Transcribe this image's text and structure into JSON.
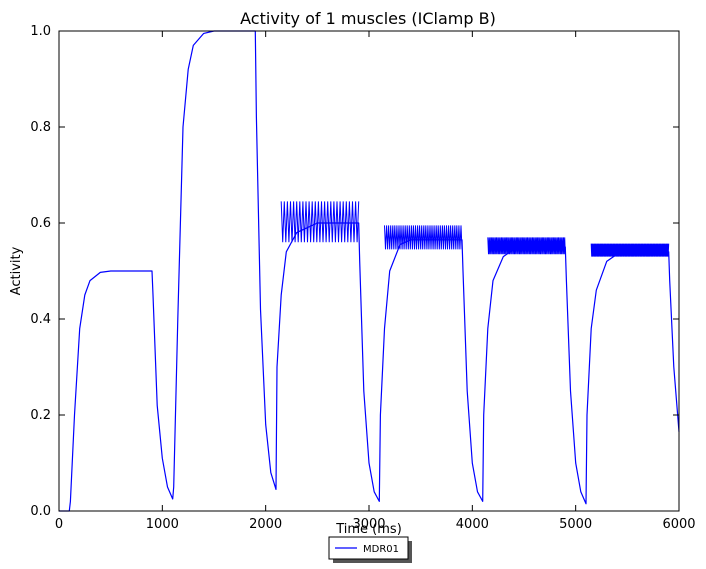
{
  "chart_data": {
    "type": "line",
    "title": "Activity of 1 muscles (IClamp B)",
    "xlabel": "Time (ms)",
    "ylabel": "Activity",
    "xlim": [
      0,
      6000
    ],
    "ylim": [
      0.0,
      1.0
    ],
    "xticks": [
      "0",
      "1000",
      "2000",
      "3000",
      "4000",
      "5000",
      "6000"
    ],
    "yticks": [
      "0.0",
      "0.2",
      "0.4",
      "0.6",
      "0.8",
      "1.0"
    ],
    "grid": false,
    "legend_position": "bottom-center (outside, below axis)",
    "series": [
      {
        "name": "MDR01",
        "color": "#0000ff",
        "x": [
          0,
          100,
          110,
          150,
          200,
          250,
          300,
          400,
          500,
          600,
          700,
          800,
          900,
          910,
          950,
          1000,
          1050,
          1100,
          1110,
          1150,
          1200,
          1250,
          1300,
          1400,
          1500,
          1600,
          1700,
          1800,
          1900,
          1910,
          1950,
          2000,
          2050,
          2100,
          2110,
          2150,
          2200,
          2300,
          2400,
          2500,
          2600,
          2700,
          2800,
          2900,
          2910,
          2950,
          3000,
          3050,
          3100,
          3110,
          3150,
          3200,
          3300,
          3400,
          3500,
          3600,
          3700,
          3800,
          3900,
          3910,
          3950,
          4000,
          4050,
          4100,
          4110,
          4150,
          4200,
          4300,
          4400,
          4500,
          4600,
          4700,
          4800,
          4900,
          4910,
          4950,
          5000,
          5050,
          5100,
          5110,
          5150,
          5200,
          5300,
          5400,
          5500,
          5600,
          5700,
          5800,
          5900,
          5910,
          5950,
          6000
        ],
        "y": [
          0.0,
          0.0,
          0.02,
          0.2,
          0.38,
          0.45,
          0.48,
          0.497,
          0.5,
          0.5,
          0.5,
          0.5,
          0.5,
          0.45,
          0.22,
          0.11,
          0.05,
          0.025,
          0.05,
          0.4,
          0.8,
          0.92,
          0.97,
          0.995,
          1.0,
          1.0,
          1.0,
          1.0,
          1.0,
          0.82,
          0.42,
          0.18,
          0.08,
          0.045,
          0.3,
          0.45,
          0.54,
          0.58,
          0.59,
          0.6,
          0.6,
          0.6,
          0.6,
          0.6,
          0.52,
          0.25,
          0.1,
          0.04,
          0.02,
          0.2,
          0.38,
          0.5,
          0.555,
          0.565,
          0.565,
          0.565,
          0.565,
          0.565,
          0.565,
          0.5,
          0.25,
          0.1,
          0.04,
          0.02,
          0.2,
          0.38,
          0.48,
          0.53,
          0.545,
          0.55,
          0.55,
          0.55,
          0.55,
          0.55,
          0.48,
          0.25,
          0.1,
          0.04,
          0.015,
          0.2,
          0.38,
          0.46,
          0.52,
          0.535,
          0.54,
          0.54,
          0.54,
          0.54,
          0.54,
          0.48,
          0.3,
          0.165
        ]
      }
    ],
    "oscillation_bands": [
      {
        "x_start": 2150,
        "x_end": 2900,
        "low": 0.56,
        "high": 0.645,
        "period": 30
      },
      {
        "x_start": 3150,
        "x_end": 3900,
        "low": 0.545,
        "high": 0.595,
        "period": 20
      },
      {
        "x_start": 4150,
        "x_end": 4900,
        "low": 0.535,
        "high": 0.57,
        "period": 12
      },
      {
        "x_start": 5150,
        "x_end": 5900,
        "low": 0.53,
        "high": 0.557,
        "period": 10
      }
    ]
  }
}
